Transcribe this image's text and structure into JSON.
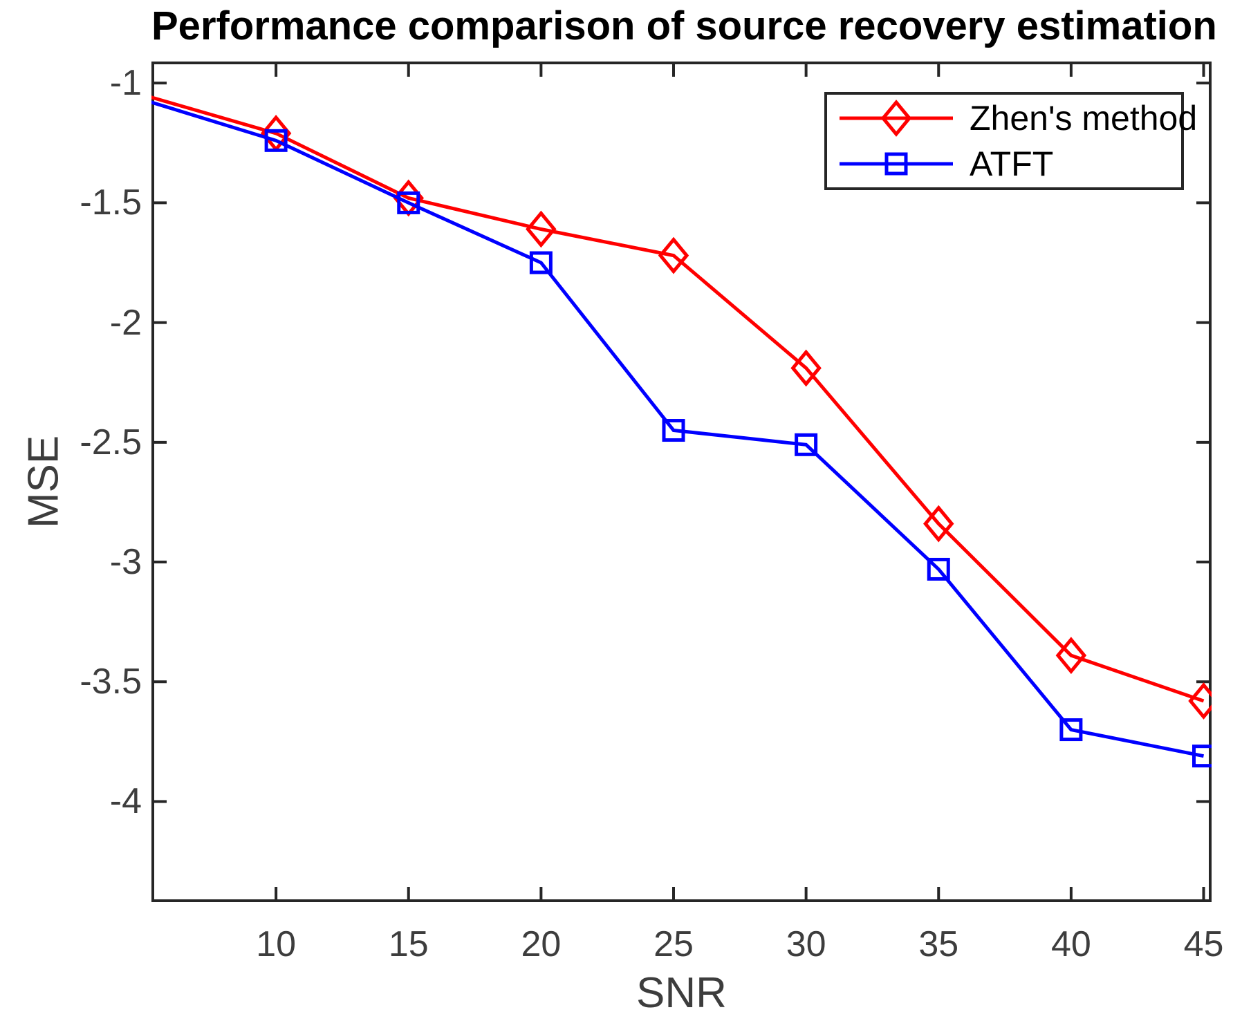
{
  "chart_data": {
    "type": "line",
    "title": "Performance comparison of source recovery estimation",
    "xlabel": "SNR",
    "ylabel": "MSE",
    "xlim": [
      5.3,
      45.3
    ],
    "ylim": [
      -4.42,
      -0.91
    ],
    "xticks": [
      10,
      15,
      20,
      25,
      30,
      35,
      40,
      45
    ],
    "xtick_labels": [
      "10",
      "15",
      "20",
      "25",
      "30",
      "35",
      "40",
      "45"
    ],
    "yticks": [
      -1,
      -1.5,
      -2,
      -2.5,
      -3,
      -3.5,
      -4
    ],
    "ytick_labels": [
      "-1",
      "-1.5",
      "-2",
      "-2.5",
      "-3",
      "-3.5",
      "-4"
    ],
    "grid": false,
    "legend_position": "top-right",
    "x": [
      5,
      10,
      15,
      20,
      25,
      30,
      35,
      40,
      45
    ],
    "series": [
      {
        "name": "Zhen's method",
        "color": "#ff0000",
        "marker": "diamond",
        "values": [
          -1.05,
          -1.21,
          -1.48,
          -1.61,
          -1.72,
          -2.19,
          -2.84,
          -3.39,
          -3.58
        ]
      },
      {
        "name": "ATFT",
        "color": "#0000ff",
        "marker": "square",
        "values": [
          -1.07,
          -1.24,
          -1.5,
          -1.75,
          -2.45,
          -2.51,
          -3.03,
          -3.7,
          -3.81
        ]
      }
    ],
    "colors": {
      "axes": "#262626",
      "tick_text": "#3d3d3d",
      "title_text": "#000000"
    }
  }
}
